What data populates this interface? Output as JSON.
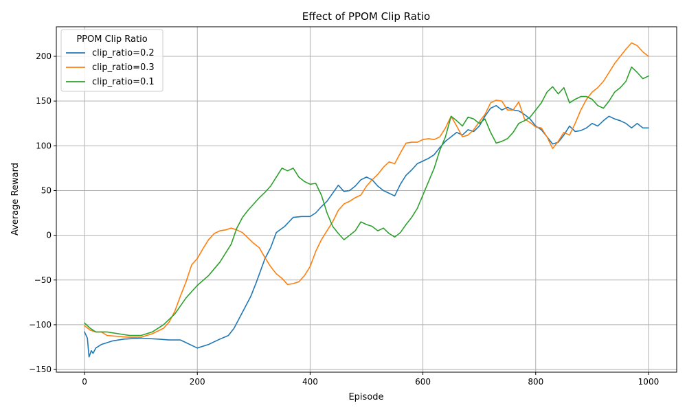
{
  "chart_data": {
    "type": "line",
    "title": "Effect of PPOM Clip Ratio",
    "xlabel": "Episode",
    "ylabel": "Average Reward",
    "xlim": [
      -50,
      1050
    ],
    "ylim": [
      -153,
      233
    ],
    "xticks": [
      0,
      200,
      400,
      600,
      800,
      1000
    ],
    "xtick_labels": [
      "0",
      "200",
      "400",
      "600",
      "800",
      "1000"
    ],
    "yticks": [
      -150,
      -100,
      -50,
      0,
      50,
      100,
      150,
      200
    ],
    "ytick_labels": [
      "−150",
      "−100",
      "−50",
      "0",
      "50",
      "100",
      "150",
      "200"
    ],
    "grid": true,
    "legend": {
      "title": "PPOM Clip Ratio",
      "placement": "top-left"
    },
    "series": [
      {
        "name": "clip_ratio=0.2",
        "color": "#1f77b4",
        "points": [
          [
            0,
            -108
          ],
          [
            5,
            -115
          ],
          [
            8,
            -136
          ],
          [
            12,
            -129
          ],
          [
            15,
            -132
          ],
          [
            20,
            -126
          ],
          [
            30,
            -122
          ],
          [
            50,
            -118
          ],
          [
            70,
            -116
          ],
          [
            100,
            -115
          ],
          [
            130,
            -116
          ],
          [
            150,
            -117
          ],
          [
            170,
            -117
          ],
          [
            180,
            -120
          ],
          [
            200,
            -126
          ],
          [
            220,
            -122
          ],
          [
            240,
            -116
          ],
          [
            255,
            -112
          ],
          [
            265,
            -104
          ],
          [
            280,
            -86
          ],
          [
            295,
            -68
          ],
          [
            305,
            -52
          ],
          [
            320,
            -26
          ],
          [
            330,
            -14
          ],
          [
            340,
            3
          ],
          [
            355,
            10
          ],
          [
            370,
            20
          ],
          [
            385,
            21
          ],
          [
            400,
            21
          ],
          [
            410,
            25
          ],
          [
            420,
            32
          ],
          [
            430,
            38
          ],
          [
            440,
            47
          ],
          [
            450,
            56
          ],
          [
            460,
            49
          ],
          [
            470,
            50
          ],
          [
            480,
            55
          ],
          [
            490,
            62
          ],
          [
            500,
            65
          ],
          [
            510,
            62
          ],
          [
            520,
            55
          ],
          [
            530,
            50
          ],
          [
            540,
            47
          ],
          [
            550,
            44
          ],
          [
            560,
            57
          ],
          [
            570,
            67
          ],
          [
            580,
            73
          ],
          [
            590,
            80
          ],
          [
            600,
            83
          ],
          [
            610,
            86
          ],
          [
            620,
            90
          ],
          [
            630,
            98
          ],
          [
            640,
            105
          ],
          [
            650,
            110
          ],
          [
            660,
            115
          ],
          [
            670,
            112
          ],
          [
            680,
            118
          ],
          [
            690,
            116
          ],
          [
            700,
            122
          ],
          [
            710,
            133
          ],
          [
            720,
            142
          ],
          [
            730,
            145
          ],
          [
            740,
            140
          ],
          [
            750,
            143
          ],
          [
            760,
            140
          ],
          [
            770,
            139
          ],
          [
            780,
            135
          ],
          [
            790,
            130
          ],
          [
            800,
            122
          ],
          [
            810,
            118
          ],
          [
            820,
            110
          ],
          [
            830,
            102
          ],
          [
            840,
            104
          ],
          [
            850,
            112
          ],
          [
            860,
            122
          ],
          [
            870,
            116
          ],
          [
            880,
            117
          ],
          [
            890,
            120
          ],
          [
            900,
            125
          ],
          [
            910,
            122
          ],
          [
            920,
            128
          ],
          [
            930,
            133
          ],
          [
            940,
            130
          ],
          [
            950,
            128
          ],
          [
            960,
            125
          ],
          [
            970,
            120
          ],
          [
            980,
            125
          ],
          [
            990,
            120
          ],
          [
            1000,
            120
          ]
        ]
      },
      {
        "name": "clip_ratio=0.3",
        "color": "#ff7f0e",
        "points": [
          [
            0,
            -101
          ],
          [
            10,
            -106
          ],
          [
            20,
            -108
          ],
          [
            30,
            -108
          ],
          [
            40,
            -112
          ],
          [
            60,
            -113
          ],
          [
            80,
            -114
          ],
          [
            100,
            -114
          ],
          [
            120,
            -110
          ],
          [
            140,
            -104
          ],
          [
            150,
            -97
          ],
          [
            160,
            -85
          ],
          [
            170,
            -68
          ],
          [
            180,
            -52
          ],
          [
            190,
            -33
          ],
          [
            200,
            -26
          ],
          [
            210,
            -15
          ],
          [
            220,
            -5
          ],
          [
            230,
            2
          ],
          [
            240,
            5
          ],
          [
            250,
            6
          ],
          [
            260,
            8
          ],
          [
            270,
            6
          ],
          [
            280,
            3
          ],
          [
            290,
            -3
          ],
          [
            300,
            -9
          ],
          [
            310,
            -14
          ],
          [
            320,
            -25
          ],
          [
            330,
            -35
          ],
          [
            340,
            -43
          ],
          [
            350,
            -48
          ],
          [
            360,
            -55
          ],
          [
            370,
            -54
          ],
          [
            380,
            -52
          ],
          [
            390,
            -45
          ],
          [
            400,
            -35
          ],
          [
            410,
            -18
          ],
          [
            420,
            -5
          ],
          [
            430,
            5
          ],
          [
            440,
            15
          ],
          [
            450,
            28
          ],
          [
            460,
            35
          ],
          [
            470,
            38
          ],
          [
            480,
            42
          ],
          [
            490,
            45
          ],
          [
            500,
            55
          ],
          [
            510,
            62
          ],
          [
            520,
            68
          ],
          [
            530,
            76
          ],
          [
            540,
            82
          ],
          [
            550,
            80
          ],
          [
            560,
            92
          ],
          [
            570,
            103
          ],
          [
            580,
            104
          ],
          [
            590,
            104
          ],
          [
            600,
            107
          ],
          [
            610,
            108
          ],
          [
            620,
            107
          ],
          [
            630,
            110
          ],
          [
            640,
            120
          ],
          [
            650,
            133
          ],
          [
            660,
            122
          ],
          [
            670,
            110
          ],
          [
            680,
            112
          ],
          [
            690,
            118
          ],
          [
            700,
            127
          ],
          [
            710,
            135
          ],
          [
            720,
            148
          ],
          [
            730,
            151
          ],
          [
            740,
            150
          ],
          [
            750,
            140
          ],
          [
            760,
            140
          ],
          [
            770,
            149
          ],
          [
            780,
            130
          ],
          [
            790,
            126
          ],
          [
            800,
            121
          ],
          [
            810,
            120
          ],
          [
            820,
            110
          ],
          [
            830,
            97
          ],
          [
            840,
            105
          ],
          [
            850,
            115
          ],
          [
            860,
            112
          ],
          [
            870,
            125
          ],
          [
            880,
            140
          ],
          [
            890,
            152
          ],
          [
            900,
            160
          ],
          [
            910,
            165
          ],
          [
            920,
            172
          ],
          [
            930,
            182
          ],
          [
            940,
            192
          ],
          [
            950,
            200
          ],
          [
            960,
            208
          ],
          [
            970,
            215
          ],
          [
            980,
            212
          ],
          [
            990,
            205
          ],
          [
            1000,
            200
          ]
        ]
      },
      {
        "name": "clip_ratio=0.1",
        "color": "#2ca02c",
        "points": [
          [
            0,
            -98
          ],
          [
            10,
            -104
          ],
          [
            20,
            -108
          ],
          [
            40,
            -108
          ],
          [
            60,
            -110
          ],
          [
            80,
            -112
          ],
          [
            100,
            -112
          ],
          [
            120,
            -108
          ],
          [
            140,
            -100
          ],
          [
            160,
            -88
          ],
          [
            180,
            -70
          ],
          [
            200,
            -56
          ],
          [
            220,
            -45
          ],
          [
            240,
            -30
          ],
          [
            260,
            -10
          ],
          [
            270,
            8
          ],
          [
            280,
            20
          ],
          [
            290,
            28
          ],
          [
            300,
            35
          ],
          [
            310,
            42
          ],
          [
            320,
            48
          ],
          [
            330,
            55
          ],
          [
            340,
            65
          ],
          [
            350,
            75
          ],
          [
            360,
            72
          ],
          [
            370,
            75
          ],
          [
            380,
            65
          ],
          [
            390,
            60
          ],
          [
            400,
            57
          ],
          [
            410,
            58
          ],
          [
            420,
            45
          ],
          [
            430,
            25
          ],
          [
            440,
            10
          ],
          [
            450,
            2
          ],
          [
            460,
            -5
          ],
          [
            470,
            0
          ],
          [
            480,
            5
          ],
          [
            490,
            15
          ],
          [
            500,
            12
          ],
          [
            510,
            10
          ],
          [
            520,
            5
          ],
          [
            530,
            8
          ],
          [
            540,
            2
          ],
          [
            550,
            -2
          ],
          [
            560,
            3
          ],
          [
            570,
            12
          ],
          [
            580,
            20
          ],
          [
            590,
            30
          ],
          [
            600,
            45
          ],
          [
            610,
            60
          ],
          [
            620,
            75
          ],
          [
            630,
            95
          ],
          [
            640,
            110
          ],
          [
            650,
            133
          ],
          [
            660,
            128
          ],
          [
            670,
            122
          ],
          [
            680,
            132
          ],
          [
            690,
            130
          ],
          [
            700,
            125
          ],
          [
            710,
            130
          ],
          [
            720,
            115
          ],
          [
            730,
            103
          ],
          [
            740,
            105
          ],
          [
            750,
            108
          ],
          [
            760,
            115
          ],
          [
            770,
            125
          ],
          [
            780,
            128
          ],
          [
            790,
            132
          ],
          [
            800,
            140
          ],
          [
            810,
            148
          ],
          [
            820,
            160
          ],
          [
            830,
            166
          ],
          [
            840,
            158
          ],
          [
            850,
            165
          ],
          [
            860,
            148
          ],
          [
            870,
            152
          ],
          [
            880,
            155
          ],
          [
            890,
            155
          ],
          [
            900,
            152
          ],
          [
            910,
            145
          ],
          [
            920,
            142
          ],
          [
            930,
            150
          ],
          [
            940,
            160
          ],
          [
            950,
            165
          ],
          [
            960,
            172
          ],
          [
            970,
            188
          ],
          [
            980,
            182
          ],
          [
            990,
            175
          ],
          [
            1000,
            178
          ]
        ]
      }
    ]
  }
}
